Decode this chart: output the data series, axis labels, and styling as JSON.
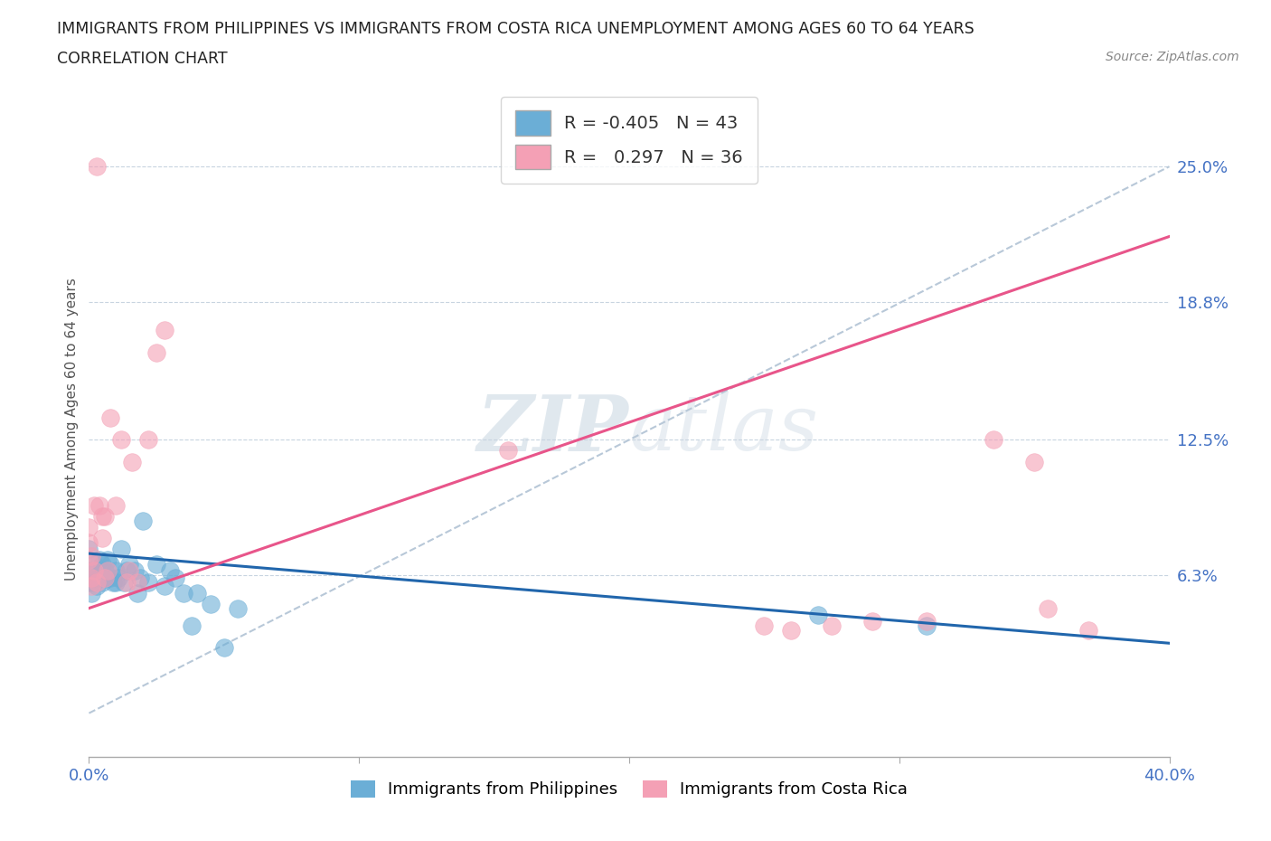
{
  "title_line1": "IMMIGRANTS FROM PHILIPPINES VS IMMIGRANTS FROM COSTA RICA UNEMPLOYMENT AMONG AGES 60 TO 64 YEARS",
  "title_line2": "CORRELATION CHART",
  "source_text": "Source: ZipAtlas.com",
  "ylabel": "Unemployment Among Ages 60 to 64 years",
  "xmin": 0.0,
  "xmax": 0.4,
  "ymin": -0.02,
  "ymax": 0.28,
  "yaxis_min": 0.0,
  "yaxis_max": 0.25,
  "right_ytick_vals": [
    0.063,
    0.125,
    0.188,
    0.25
  ],
  "right_ytick_labels": [
    "6.3%",
    "12.5%",
    "18.8%",
    "25.0%"
  ],
  "blue_color": "#6baed6",
  "pink_color": "#f4a0b5",
  "blue_line_color": "#2166ac",
  "pink_line_color": "#e8558a",
  "diagonal_line_color": "#b8c8d8",
  "watermark_color": "#d4dfe8",
  "legend_R_blue": "-0.405",
  "legend_N_blue": "43",
  "legend_R_pink": "0.297",
  "legend_N_pink": "36",
  "blue_line_x0": 0.0,
  "blue_line_y0": 0.073,
  "blue_line_x1": 0.4,
  "blue_line_y1": 0.032,
  "pink_line_x0": 0.0,
  "pink_line_y0": 0.048,
  "pink_line_x1": 0.4,
  "pink_line_y1": 0.218,
  "blue_scatter_x": [
    0.0,
    0.0,
    0.0,
    0.001,
    0.001,
    0.002,
    0.002,
    0.003,
    0.003,
    0.004,
    0.004,
    0.005,
    0.005,
    0.006,
    0.007,
    0.007,
    0.008,
    0.008,
    0.009,
    0.01,
    0.01,
    0.011,
    0.012,
    0.013,
    0.014,
    0.015,
    0.017,
    0.018,
    0.019,
    0.02,
    0.022,
    0.025,
    0.028,
    0.03,
    0.032,
    0.035,
    0.038,
    0.04,
    0.045,
    0.05,
    0.055,
    0.27,
    0.31
  ],
  "blue_scatter_y": [
    0.06,
    0.065,
    0.075,
    0.055,
    0.062,
    0.06,
    0.068,
    0.058,
    0.065,
    0.062,
    0.07,
    0.06,
    0.068,
    0.065,
    0.062,
    0.07,
    0.062,
    0.068,
    0.06,
    0.065,
    0.06,
    0.062,
    0.075,
    0.06,
    0.065,
    0.068,
    0.065,
    0.055,
    0.062,
    0.088,
    0.06,
    0.068,
    0.058,
    0.065,
    0.062,
    0.055,
    0.04,
    0.055,
    0.05,
    0.03,
    0.048,
    0.045,
    0.04
  ],
  "pink_scatter_x": [
    0.0,
    0.0,
    0.0,
    0.001,
    0.001,
    0.001,
    0.002,
    0.002,
    0.003,
    0.003,
    0.004,
    0.005,
    0.005,
    0.006,
    0.006,
    0.007,
    0.008,
    0.01,
    0.012,
    0.014,
    0.015,
    0.016,
    0.018,
    0.022,
    0.025,
    0.028,
    0.155,
    0.25,
    0.26,
    0.275,
    0.29,
    0.31,
    0.335,
    0.35,
    0.355,
    0.37
  ],
  "pink_scatter_y": [
    0.07,
    0.078,
    0.085,
    0.058,
    0.062,
    0.072,
    0.065,
    0.095,
    0.06,
    0.25,
    0.095,
    0.08,
    0.09,
    0.062,
    0.09,
    0.065,
    0.135,
    0.095,
    0.125,
    0.06,
    0.065,
    0.115,
    0.06,
    0.125,
    0.165,
    0.175,
    0.12,
    0.04,
    0.038,
    0.04,
    0.042,
    0.042,
    0.125,
    0.115,
    0.048,
    0.038
  ]
}
